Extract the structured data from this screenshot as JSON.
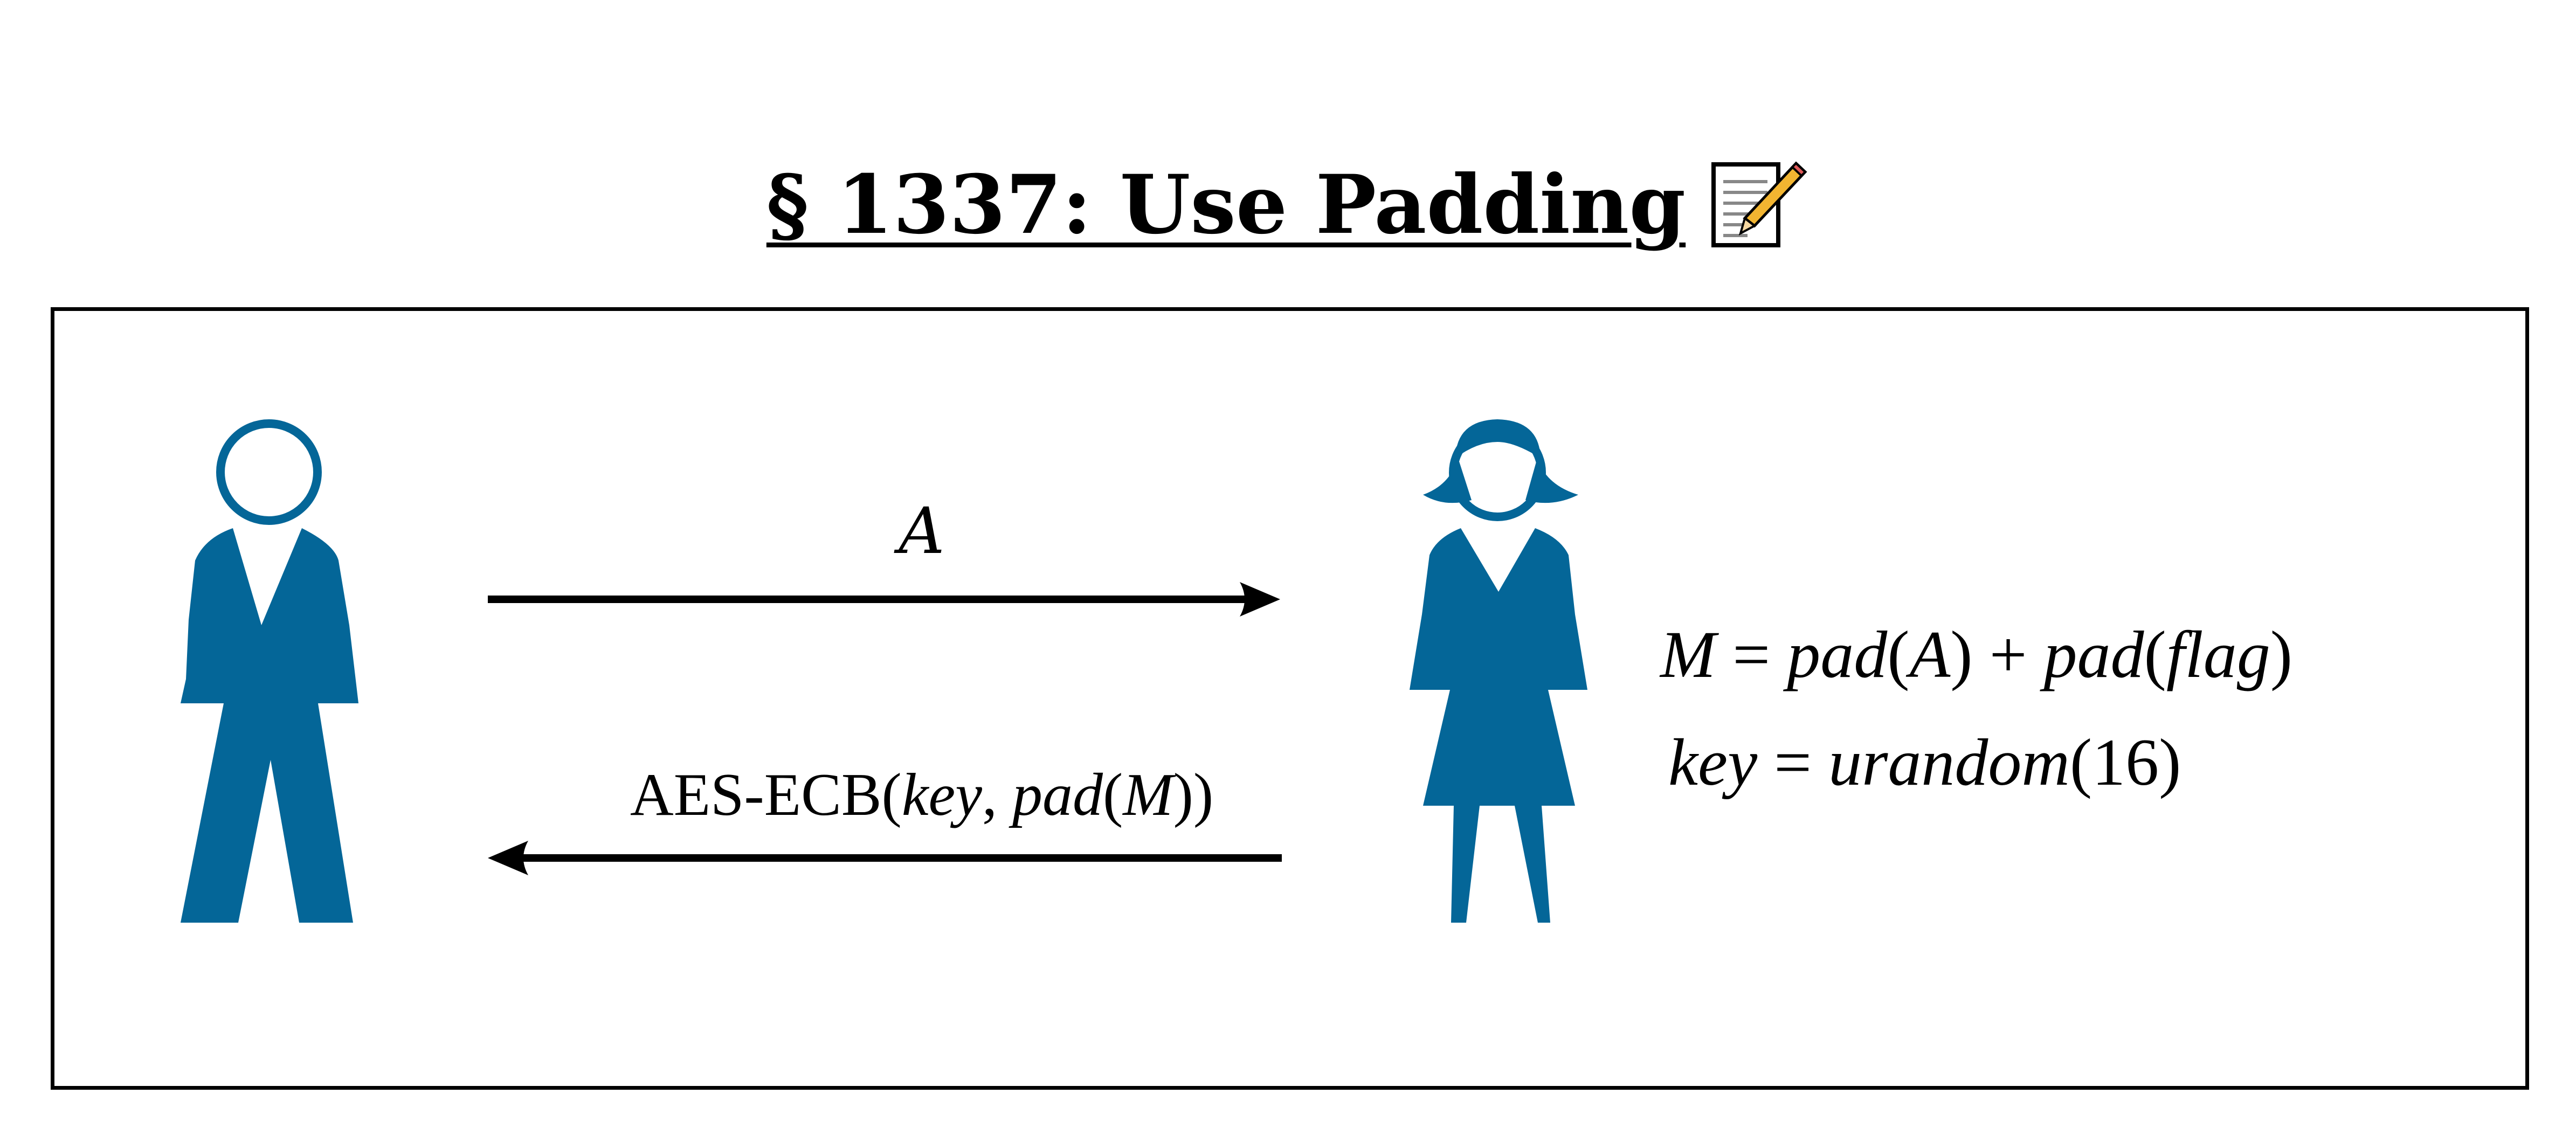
{
  "title": {
    "text": "§ 1337: Use Padding",
    "icon": "memo-icon"
  },
  "actors": {
    "left": {
      "icon": "man-figure-icon",
      "color": "#046698"
    },
    "right": {
      "icon": "woman-figure-icon",
      "color": "#046698"
    }
  },
  "messages": {
    "forward": {
      "label": "A",
      "direction": "left-to-right"
    },
    "backward": {
      "prefix": "AES-ECB(",
      "arg1": "key",
      "sep": ", ",
      "fn": "pad",
      "open": "(",
      "arg2": "M",
      "close": "))",
      "direction": "right-to-left"
    }
  },
  "equations": {
    "line1": {
      "lhs": "M",
      "eq": " = ",
      "f1": "pad",
      "p1": "(",
      "a1": "A",
      "p2": ")",
      "plus": " + ",
      "f2": "pad",
      "p3": "(",
      "a2": "flag",
      "p4": ")"
    },
    "line2": {
      "lhs": "key",
      "eq": " = ",
      "fn": "urandom",
      "args": "(16)"
    }
  },
  "colors": {
    "figure": "#046698",
    "ink": "#000000"
  }
}
